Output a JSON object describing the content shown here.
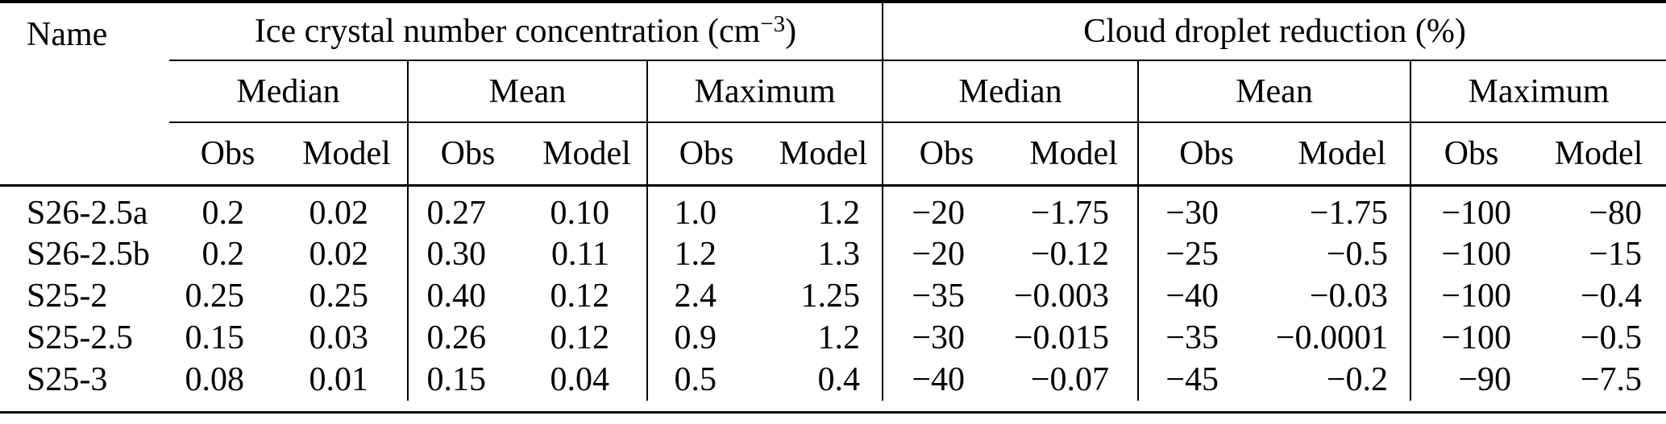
{
  "colors": {
    "text": "#000000",
    "rules": "#000000",
    "background": "#ffffff"
  },
  "table": {
    "name_header": "Name",
    "sections": [
      {
        "title_prefix": "Ice crystal number concentration (cm",
        "title_sup": "−3",
        "title_suffix": ")"
      },
      {
        "title": "Cloud droplet reduction (%)"
      }
    ],
    "stat_labels": [
      "Median",
      "Mean",
      "Maximum"
    ],
    "obs_model": [
      "Obs",
      "Model"
    ],
    "rows": [
      {
        "name": "S26-2.5a",
        "values": [
          "0.2",
          "0.02",
          "0.27",
          "0.10",
          "1.0",
          "1.2",
          "−20",
          "−1.75",
          "−30",
          "−1.75",
          "−100",
          "−80"
        ]
      },
      {
        "name": "S26-2.5b",
        "values": [
          "0.2",
          "0.02",
          "0.30",
          "0.11",
          "1.2",
          "1.3",
          "−20",
          "−0.12",
          "−25",
          "−0.5",
          "−100",
          "−15"
        ]
      },
      {
        "name": "S25-2",
        "values": [
          "0.25",
          "0.25",
          "0.40",
          "0.12",
          "2.4",
          "1.25",
          "−35",
          "−0.003",
          "−40",
          "−0.03",
          "−100",
          "−0.4"
        ]
      },
      {
        "name": "S25-2.5",
        "values": [
          "0.15",
          "0.03",
          "0.26",
          "0.12",
          "0.9",
          "1.2",
          "−30",
          "−0.015",
          "−35",
          "−0.0001",
          "−100",
          "−0.5"
        ]
      },
      {
        "name": "S25-3",
        "values": [
          "0.08",
          "0.01",
          "0.15",
          "0.04",
          "0.5",
          "0.4",
          "−40",
          "−0.07",
          "−45",
          "−0.2",
          "−90",
          "−7.5"
        ]
      }
    ]
  }
}
